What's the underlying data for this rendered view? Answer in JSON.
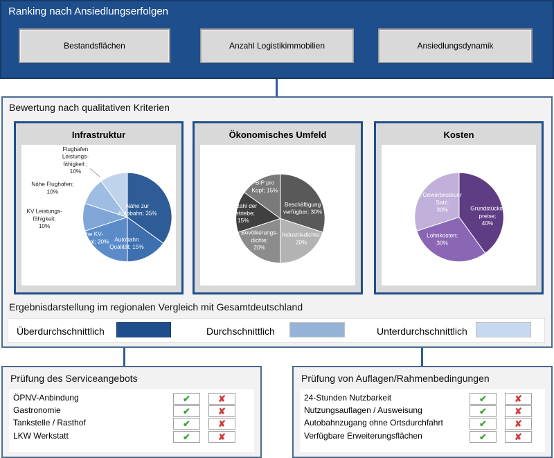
{
  "top": {
    "title": "Ranking nach Ansiedlungserfolgen",
    "buttons": [
      "Bestandsflächen",
      "Anzahl Logistikimmobilien",
      "Ansiedlungsdynamik"
    ]
  },
  "middle": {
    "title": "Bewertung nach qualitativen Kriterien",
    "result_title": "Ergebnisdarstellung im regionalen Vergleich mit Gesamtdeutschland",
    "legend": [
      {
        "label": "Überdurchschnittlich",
        "color": "#1f4e8c"
      },
      {
        "label": "Durchschnittlich",
        "color": "#95b3d7"
      },
      {
        "label": "Unterdurchschnittlich",
        "color": "#c6d9f1"
      }
    ]
  },
  "chart_data": [
    {
      "type": "pie",
      "title": "Infrastruktur",
      "slices": [
        {
          "label": "Nähe zur Autobahn; 35%",
          "value": 35,
          "color": "#2e5c96"
        },
        {
          "label": "Autobahn Qualität; 15%",
          "value": 15,
          "color": "#3e6fae"
        },
        {
          "label": "Nähe KV-Terminal; 20%",
          "value": 20,
          "color": "#5b8cc9"
        },
        {
          "label": "KV Leistungs-fähigkeit; 10%",
          "value": 10,
          "color": "#7fa6d6"
        },
        {
          "label": "Nähe Flughafen; 10%",
          "value": 10,
          "color": "#9fbde2"
        },
        {
          "label": "Flughafen Leistungs-fähigkeit ; 10%",
          "value": 10,
          "color": "#c0d3ec"
        }
      ]
    },
    {
      "type": "pie",
      "title": "Ökonomisches Umfeld",
      "slices": [
        {
          "label": "Beschäftigung verfügbar; 30%",
          "value": 30,
          "color": "#595959"
        },
        {
          "label": "Industriedichte; 20%",
          "value": 20,
          "color": "#b3b3b3"
        },
        {
          "label": "Bevölkerungs-dichte; 20%",
          "value": 20,
          "color": "#8c8c8c"
        },
        {
          "label": "Anzahl der Betriebe; 15%",
          "value": 15,
          "color": "#404040"
        },
        {
          "label": "BIP pro Kopf; 15%",
          "value": 15,
          "color": "#7a7a7a"
        }
      ]
    },
    {
      "type": "pie",
      "title": "Kosten",
      "slices": [
        {
          "label": "Grundstücks-preise; 40%",
          "value": 40,
          "color": "#5f3d85"
        },
        {
          "label": "Lohnkosten; 30%",
          "value": 30,
          "color": "#8a66b5"
        },
        {
          "label": "Gewerbesteuer Satz; 30%",
          "value": 30,
          "color": "#c1b0d9"
        }
      ]
    }
  ],
  "service": {
    "title": "Prüfung des Serviceangebots",
    "items": [
      "ÖPNV-Anbindung",
      "Gastronomie",
      "Tankstelle / Rasthof",
      "LKW Werkstatt"
    ]
  },
  "conditions": {
    "title": "Prüfung von Auflagen/Rahmenbedingungen",
    "items": [
      "24-Stunden Nutzbarkeit",
      "Nutzungsauflagen / Ausweisung",
      "Autobahnzugang ohne Ortsdurchfahrt",
      "Verfügbare Erweiterungsflächen"
    ]
  },
  "icons": {
    "check": "check-icon",
    "cross": "cross-icon"
  }
}
